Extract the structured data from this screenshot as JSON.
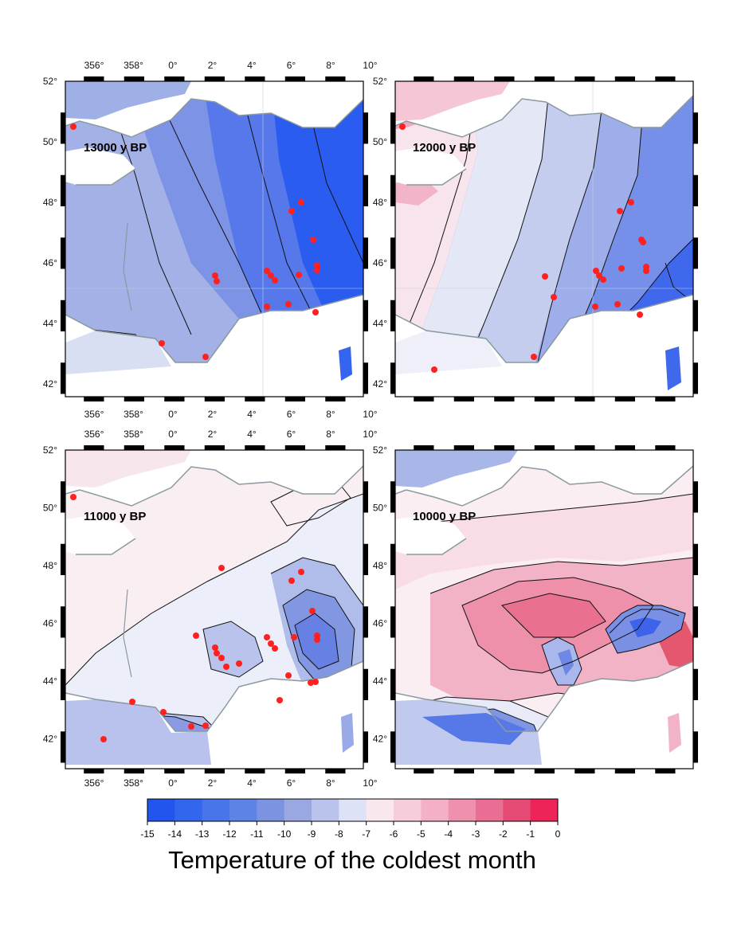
{
  "panels": [
    {
      "label": "13000 y BP",
      "xticks": [
        "356°",
        "358°",
        "0°",
        "2°",
        "4°",
        "6°",
        "8°",
        "10°"
      ],
      "yticks": [
        "52°",
        "50°",
        "48°",
        "46°",
        "44°",
        "42°"
      ]
    },
    {
      "label": "12000 y BP",
      "xticks": [],
      "yticks": [
        "52°",
        "50°",
        "48°",
        "46°",
        "44°",
        "42°"
      ]
    },
    {
      "label": "11000 y BP",
      "xticks": [
        "356°",
        "358°",
        "0°",
        "2°",
        "4°",
        "6°",
        "8°",
        "10°"
      ],
      "yticks": [
        "52°",
        "50°",
        "48°",
        "46°",
        "44°",
        "42°"
      ]
    },
    {
      "label": "10000 y BP",
      "xticks": [],
      "yticks": [
        "52°",
        "50°",
        "48°",
        "46°",
        "44°",
        "42°"
      ]
    }
  ],
  "colorbar": {
    "title": "Temperature of the coldest month",
    "ticks": [
      "-15",
      "-14",
      "-13",
      "-12",
      "-11",
      "-10",
      "-9",
      "-8",
      "-7",
      "-6",
      "-5",
      "-4",
      "-3",
      "-2",
      "-1",
      "0"
    ],
    "colors": [
      "#2255ee",
      "#3366ee",
      "#4a74ea",
      "#5d83e6",
      "#7b93e0",
      "#9aa8e2",
      "#bac3ec",
      "#dde2f6",
      "#f8e8ee",
      "#f6cedb",
      "#f3b0c6",
      "#ef90ad",
      "#ea6e93",
      "#e54a75",
      "#ee2458"
    ]
  }
}
